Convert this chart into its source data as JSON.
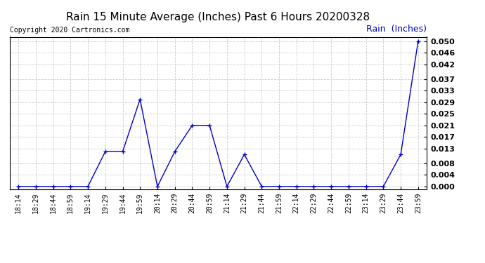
{
  "title": "Rain 15 Minute Average (Inches) Past 6 Hours 20200328",
  "copyright": "Copyright 2020 Cartronics.com",
  "legend_label": "Rain  (Inches)",
  "x_labels": [
    "18:14",
    "18:29",
    "18:44",
    "18:59",
    "19:14",
    "19:29",
    "19:44",
    "19:59",
    "20:14",
    "20:29",
    "20:44",
    "20:59",
    "21:14",
    "21:29",
    "21:44",
    "21:59",
    "22:14",
    "22:29",
    "22:44",
    "22:59",
    "23:14",
    "23:29",
    "23:44",
    "23:59"
  ],
  "y_values": [
    0.0,
    0.0,
    0.0,
    0.0,
    0.0,
    0.012,
    0.012,
    0.03,
    0.0,
    0.012,
    0.021,
    0.021,
    0.0,
    0.011,
    0.0,
    0.0,
    0.0,
    0.0,
    0.0,
    0.0,
    0.0,
    0.0,
    0.011,
    0.05
  ],
  "y_ticks": [
    0.0,
    0.004,
    0.008,
    0.013,
    0.017,
    0.021,
    0.025,
    0.029,
    0.033,
    0.037,
    0.042,
    0.046,
    0.05
  ],
  "ylim": [
    -0.001,
    0.0515
  ],
  "line_color": "#0000cc",
  "marker": "+",
  "title_fontsize": 11,
  "copyright_fontsize": 7,
  "legend_fontsize": 9,
  "ytick_fontsize": 8,
  "xtick_fontsize": 7,
  "background_color": "#ffffff",
  "grid_color": "#cccccc",
  "border_color": "#000000"
}
